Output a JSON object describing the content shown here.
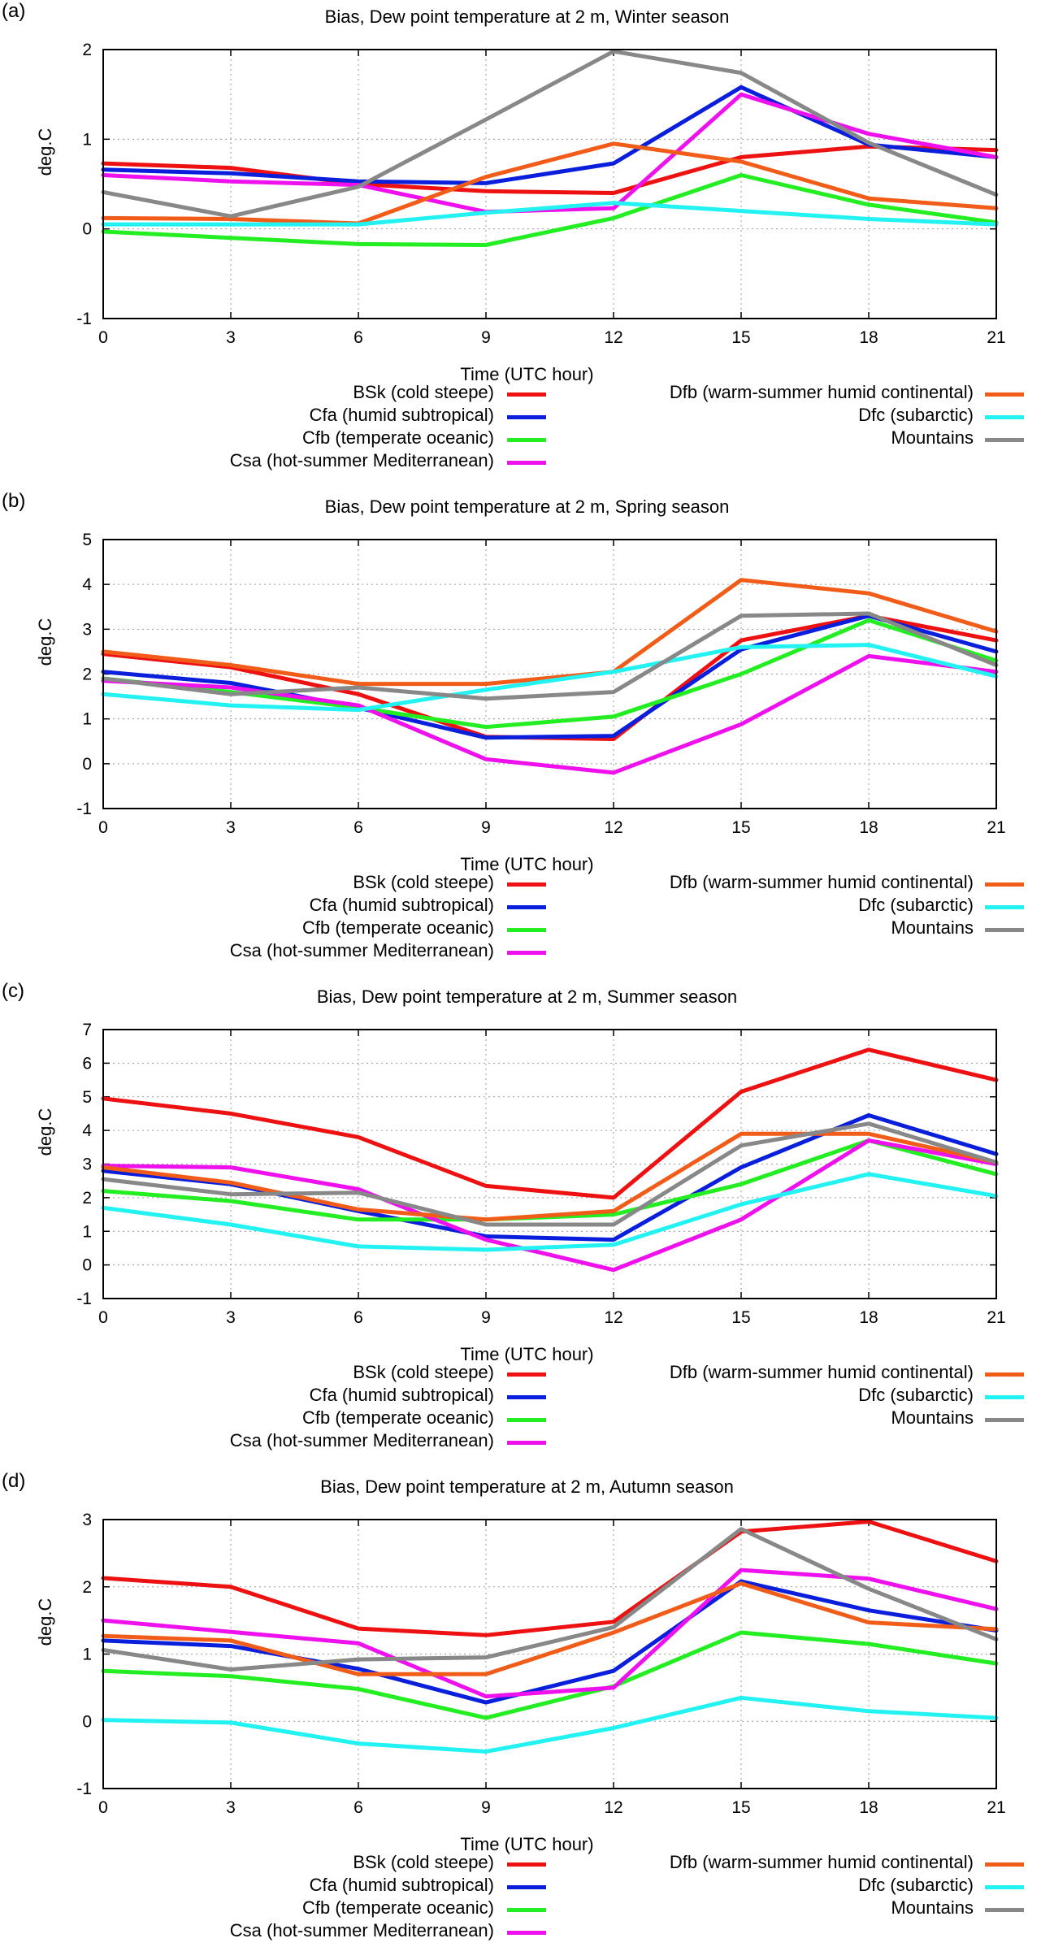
{
  "chart_data": [
    {
      "type": "line",
      "panel_label": "(a)",
      "title": "Bias, Dew point temperature at 2 m, Winter season",
      "xlabel": "Time (UTC hour)",
      "ylabel": "deg.C",
      "x": [
        0,
        3,
        6,
        9,
        12,
        15,
        18,
        21
      ],
      "x_ticks": [
        "0",
        "3",
        "6",
        "9",
        "12",
        "15",
        "18",
        "21"
      ],
      "ylim": [
        -1,
        2
      ],
      "y_ticks": [
        -1,
        0,
        1,
        2
      ],
      "grid": true,
      "legend_position": "below",
      "series": [
        {
          "name": "BSk (cold steepe)",
          "color": "#ee1111",
          "values": [
            0.73,
            0.68,
            0.5,
            0.42,
            0.4,
            0.8,
            0.92,
            0.88
          ]
        },
        {
          "name": "Cfa (humid subtropical)",
          "color": "#0a1fdc",
          "values": [
            0.66,
            0.62,
            0.53,
            0.51,
            0.73,
            1.58,
            0.94,
            0.8
          ]
        },
        {
          "name": "Cfb (temperate oceanic)",
          "color": "#22ee22",
          "values": [
            -0.03,
            -0.1,
            -0.17,
            -0.18,
            0.12,
            0.6,
            0.27,
            0.07
          ]
        },
        {
          "name": "Csa (hot-summer Mediterranean)",
          "color": "#ee11ee",
          "values": [
            0.6,
            0.53,
            0.49,
            0.19,
            0.23,
            1.5,
            1.06,
            0.8
          ]
        },
        {
          "name": "Dfb (warm-summer humid continental)",
          "color": "#f25c19",
          "values": [
            0.12,
            0.11,
            0.06,
            0.58,
            0.95,
            0.75,
            0.34,
            0.23
          ]
        },
        {
          "name": "Dfc (subarctic)",
          "color": "#22f2f2",
          "values": [
            0.05,
            0.05,
            0.05,
            0.18,
            0.29,
            0.2,
            0.11,
            0.05
          ]
        },
        {
          "name": "Mountains",
          "color": "#888888",
          "values": [
            0.41,
            0.14,
            0.47,
            1.22,
            1.98,
            1.74,
            0.96,
            0.38
          ]
        }
      ]
    },
    {
      "type": "line",
      "panel_label": "(b)",
      "title": "Bias, Dew point temperature at 2 m, Spring season",
      "xlabel": "Time (UTC hour)",
      "ylabel": "deg.C",
      "x": [
        0,
        3,
        6,
        9,
        12,
        15,
        18,
        21
      ],
      "x_ticks": [
        "0",
        "3",
        "6",
        "9",
        "12",
        "15",
        "18",
        "21"
      ],
      "ylim": [
        -1,
        5
      ],
      "y_ticks": [
        -1,
        0,
        1,
        2,
        3,
        4,
        5
      ],
      "grid": true,
      "legend_position": "below",
      "series": [
        {
          "name": "BSk (cold steepe)",
          "color": "#ee1111",
          "values": [
            2.45,
            2.15,
            1.55,
            0.6,
            0.55,
            2.75,
            3.3,
            2.75
          ]
        },
        {
          "name": "Cfa (humid subtropical)",
          "color": "#0a1fdc",
          "values": [
            2.05,
            1.8,
            1.25,
            0.58,
            0.62,
            2.55,
            3.3,
            2.5
          ]
        },
        {
          "name": "Cfb (temperate oceanic)",
          "color": "#22ee22",
          "values": [
            1.9,
            1.6,
            1.25,
            0.82,
            1.05,
            2.0,
            3.2,
            2.3
          ]
        },
        {
          "name": "Csa (hot-summer Mediterranean)",
          "color": "#ee11ee",
          "values": [
            1.85,
            1.7,
            1.3,
            0.1,
            -0.2,
            0.88,
            2.4,
            2.05
          ]
        },
        {
          "name": "Dfb (warm-summer humid continental)",
          "color": "#f25c19",
          "values": [
            2.5,
            2.2,
            1.78,
            1.78,
            2.05,
            4.1,
            3.8,
            2.95
          ]
        },
        {
          "name": "Dfc (subarctic)",
          "color": "#22f2f2",
          "values": [
            1.55,
            1.3,
            1.2,
            1.65,
            2.05,
            2.6,
            2.65,
            1.95
          ]
        },
        {
          "name": "Mountains",
          "color": "#888888",
          "values": [
            1.9,
            1.55,
            1.7,
            1.45,
            1.6,
            3.3,
            3.35,
            2.2
          ]
        }
      ]
    },
    {
      "type": "line",
      "panel_label": "(c)",
      "title": "Bias, Dew point temperature at 2 m, Summer season",
      "xlabel": "Time (UTC hour)",
      "ylabel": "deg.C",
      "x": [
        0,
        3,
        6,
        9,
        12,
        15,
        18,
        21
      ],
      "x_ticks": [
        "0",
        "3",
        "6",
        "9",
        "12",
        "15",
        "18",
        "21"
      ],
      "ylim": [
        -1,
        7
      ],
      "y_ticks": [
        -1,
        0,
        1,
        2,
        3,
        4,
        5,
        6,
        7
      ],
      "grid": true,
      "legend_position": "below",
      "series": [
        {
          "name": "BSk (cold steepe)",
          "color": "#ee1111",
          "values": [
            4.95,
            4.5,
            3.8,
            2.35,
            2.0,
            5.15,
            6.4,
            5.5
          ]
        },
        {
          "name": "Cfa (humid subtropical)",
          "color": "#0a1fdc",
          "values": [
            2.8,
            2.4,
            1.6,
            0.85,
            0.75,
            2.9,
            4.45,
            3.3
          ]
        },
        {
          "name": "Cfb (temperate oceanic)",
          "color": "#22ee22",
          "values": [
            2.2,
            1.9,
            1.35,
            1.35,
            1.5,
            2.4,
            3.7,
            2.7
          ]
        },
        {
          "name": "Csa (hot-summer Mediterranean)",
          "color": "#ee11ee",
          "values": [
            2.95,
            2.9,
            2.25,
            0.75,
            -0.15,
            1.35,
            3.7,
            3.0
          ]
        },
        {
          "name": "Dfb (warm-summer humid continental)",
          "color": "#f25c19",
          "values": [
            2.9,
            2.45,
            1.65,
            1.35,
            1.6,
            3.9,
            3.9,
            3.05
          ]
        },
        {
          "name": "Dfc (subarctic)",
          "color": "#22f2f2",
          "values": [
            1.7,
            1.2,
            0.55,
            0.45,
            0.6,
            1.8,
            2.7,
            2.05
          ]
        },
        {
          "name": "Mountains",
          "color": "#888888",
          "values": [
            2.55,
            2.1,
            2.15,
            1.2,
            1.2,
            3.55,
            4.2,
            3.05
          ]
        }
      ]
    },
    {
      "type": "line",
      "panel_label": "(d)",
      "title": "Bias, Dew point temperature at 2 m, Autumn season",
      "xlabel": "Time (UTC hour)",
      "ylabel": "deg.C",
      "x": [
        0,
        3,
        6,
        9,
        12,
        15,
        18,
        21
      ],
      "x_ticks": [
        "0",
        "3",
        "6",
        "9",
        "12",
        "15",
        "18",
        "21"
      ],
      "ylim": [
        -1,
        3
      ],
      "y_ticks": [
        -1,
        0,
        1,
        2,
        3
      ],
      "grid": true,
      "legend_position": "below",
      "series": [
        {
          "name": "BSk (cold steepe)",
          "color": "#ee1111",
          "values": [
            2.13,
            2.0,
            1.38,
            1.28,
            1.48,
            2.82,
            2.97,
            2.38
          ]
        },
        {
          "name": "Cfa (humid subtropical)",
          "color": "#0a1fdc",
          "values": [
            1.2,
            1.12,
            0.78,
            0.28,
            0.75,
            2.08,
            1.65,
            1.35
          ]
        },
        {
          "name": "Cfb (temperate oceanic)",
          "color": "#22ee22",
          "values": [
            0.75,
            0.67,
            0.48,
            0.05,
            0.52,
            1.32,
            1.15,
            0.86
          ]
        },
        {
          "name": "Csa (hot-summer Mediterranean)",
          "color": "#ee11ee",
          "values": [
            1.5,
            1.33,
            1.16,
            0.37,
            0.5,
            2.25,
            2.12,
            1.67
          ]
        },
        {
          "name": "Dfb (warm-summer humid continental)",
          "color": "#f25c19",
          "values": [
            1.27,
            1.2,
            0.7,
            0.7,
            1.32,
            2.05,
            1.47,
            1.37
          ]
        },
        {
          "name": "Dfc (subarctic)",
          "color": "#22f2f2",
          "values": [
            0.02,
            -0.02,
            -0.33,
            -0.45,
            -0.1,
            0.35,
            0.15,
            0.05
          ]
        },
        {
          "name": "Mountains",
          "color": "#888888",
          "values": [
            1.06,
            0.77,
            0.92,
            0.95,
            1.4,
            2.86,
            1.97,
            1.22
          ]
        }
      ]
    }
  ]
}
